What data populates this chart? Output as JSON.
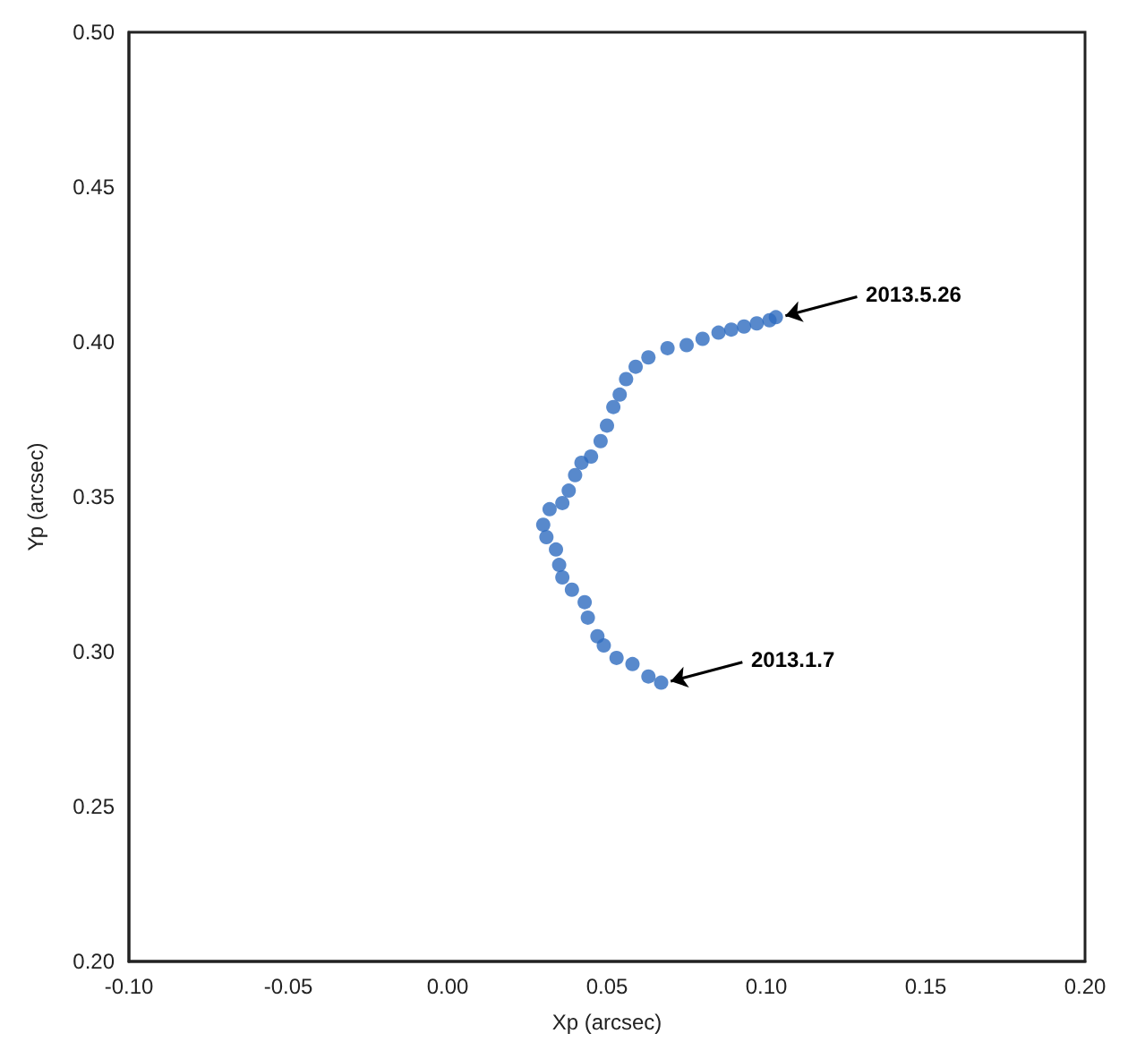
{
  "chart_data": {
    "type": "scatter",
    "xlabel": "Xp (arcsec)",
    "ylabel": "Yp (arcsec)",
    "xlim": [
      -0.1,
      0.2
    ],
    "ylim": [
      0.2,
      0.5
    ],
    "xticks": [
      {
        "value": -0.1,
        "label": "-0.10"
      },
      {
        "value": -0.05,
        "label": "-0.05"
      },
      {
        "value": 0,
        "label": "0.00"
      },
      {
        "value": 0.05,
        "label": "0.05"
      },
      {
        "value": 0.1,
        "label": "0.10"
      },
      {
        "value": 0.15,
        "label": "0.15"
      },
      {
        "value": 0.2,
        "label": "0.20"
      }
    ],
    "yticks": [
      {
        "value": 0.2,
        "label": "0.20"
      },
      {
        "value": 0.25,
        "label": "0.25"
      },
      {
        "value": 0.3,
        "label": "0.30"
      },
      {
        "value": 0.35,
        "label": "0.35"
      },
      {
        "value": 0.4,
        "label": "0.40"
      },
      {
        "value": 0.45,
        "label": "0.45"
      },
      {
        "value": 0.5,
        "label": "0.50"
      }
    ],
    "grid": false,
    "marker": "circle",
    "series": [
      {
        "color": "#2e6bbf",
        "x": [
          0.067,
          0.063,
          0.058,
          0.053,
          0.049,
          0.047,
          0.044,
          0.043,
          0.039,
          0.036,
          0.035,
          0.034,
          0.031,
          0.03,
          0.032,
          0.036,
          0.038,
          0.04,
          0.042,
          0.045,
          0.048,
          0.05,
          0.052,
          0.054,
          0.056,
          0.059,
          0.063,
          0.069,
          0.075,
          0.08,
          0.085,
          0.089,
          0.093,
          0.097,
          0.101,
          0.103
        ],
        "values": [
          0.29,
          0.292,
          0.296,
          0.298,
          0.302,
          0.305,
          0.311,
          0.316,
          0.32,
          0.324,
          0.328,
          0.333,
          0.337,
          0.341,
          0.346,
          0.348,
          0.352,
          0.357,
          0.361,
          0.363,
          0.368,
          0.373,
          0.379,
          0.383,
          0.388,
          0.392,
          0.395,
          0.398,
          0.399,
          0.401,
          0.403,
          0.404,
          0.405,
          0.406,
          0.407,
          0.408
        ]
      }
    ],
    "annotations": [
      {
        "text": "2013.5.26",
        "x": 0.103,
        "y": 0.408
      },
      {
        "text": "2013.1.7",
        "x": 0.067,
        "y": 0.29
      }
    ]
  }
}
